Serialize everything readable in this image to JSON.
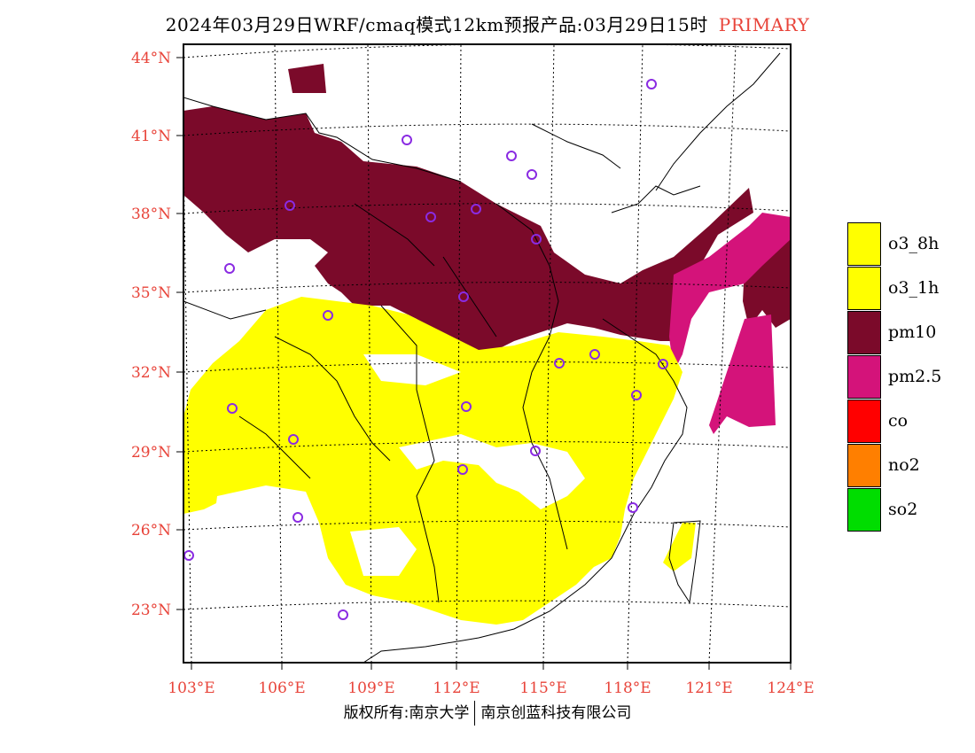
{
  "title": {
    "main": "2024年03月29日WRF/cmaq模式12km预报产品:03月29日15时",
    "tag": "PRIMARY"
  },
  "axes": {
    "lat_labels": [
      "44°N",
      "41°N",
      "38°N",
      "35°N",
      "32°N",
      "29°N",
      "26°N",
      "23°N"
    ],
    "lon_labels": [
      "103°E",
      "106°E",
      "109°E",
      "112°E",
      "115°E",
      "118°E",
      "121°E",
      "124°E"
    ]
  },
  "legend": [
    {
      "label": "o3_8h",
      "color": "#ffff00"
    },
    {
      "label": "o3_1h",
      "color": "#ffff00"
    },
    {
      "label": "pm10",
      "color": "#7b0a2a"
    },
    {
      "label": "pm2.5",
      "color": "#d4137a"
    },
    {
      "label": "co",
      "color": "#ff0000"
    },
    {
      "label": "no2",
      "color": "#ff7f00"
    },
    {
      "label": "so2",
      "color": "#00dd00"
    }
  ],
  "footer": {
    "left": "版权所有:南京大学",
    "right": "南京创蓝科技有限公司"
  },
  "colors": {
    "label_red": "#e8443a",
    "station": "#8a2be2"
  }
}
